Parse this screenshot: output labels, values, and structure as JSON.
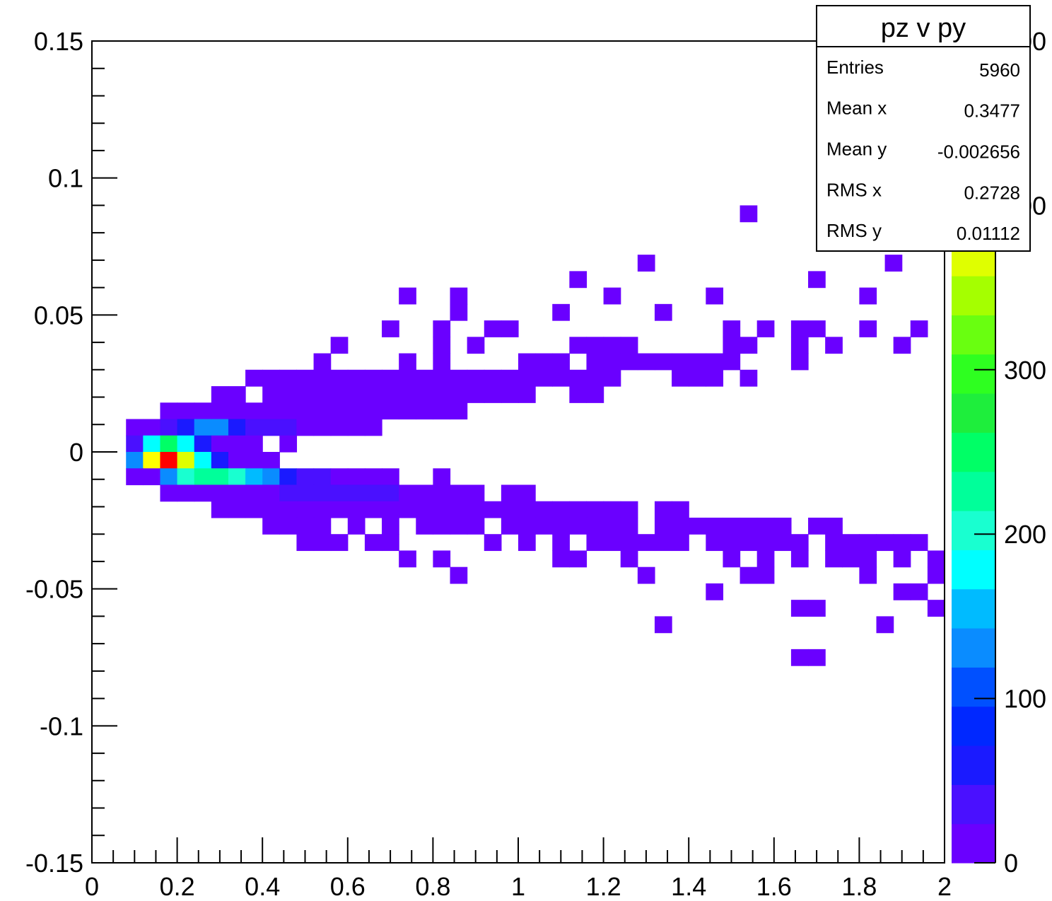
{
  "chart_data": {
    "type": "heatmap",
    "stats": {
      "title": "pz v py",
      "rows": [
        {
          "label": "Entries",
          "value": "5960"
        },
        {
          "label": "Mean x",
          "value": "0.3477"
        },
        {
          "label": "Mean y",
          "value": "-0.002656"
        },
        {
          "label": "RMS x",
          "value": "0.2728"
        },
        {
          "label": "RMS y",
          "value": "0.01112"
        }
      ]
    },
    "xlim": [
      0,
      2
    ],
    "ylim": [
      -0.15,
      0.15
    ],
    "zlim": [
      0,
      500
    ],
    "bin_width_x": 0.04,
    "bin_width_y": 0.006,
    "x_tick_labels": [
      "0",
      "0.2",
      "0.4",
      "0.6",
      "0.8",
      "1",
      "1.2",
      "1.4",
      "1.6",
      "1.8",
      "2"
    ],
    "y_tick_labels": [
      "0.15",
      "0.1",
      "0.05",
      "0",
      "-0.05",
      "-0.1",
      "-0.15"
    ],
    "z_tick_labels": [
      "0",
      "100",
      "200",
      "300",
      "400",
      "500"
    ],
    "palette": [
      "#6a00ff",
      "#4a10ff",
      "#1a1aff",
      "#0028ff",
      "#0050ff",
      "#0a8cff",
      "#00bbff",
      "#00ffff",
      "#19ffd0",
      "#00ff9a",
      "#00ff66",
      "#1eee3c",
      "#2eff20",
      "#69ff10",
      "#a5ff00",
      "#dfff00",
      "#ffff00",
      "#ffc400",
      "#ff8a00",
      "#ff4a00",
      "#ff0000"
    ],
    "bins": [
      [
        1.54,
        0.087,
        2
      ],
      [
        1.3,
        0.069,
        2
      ],
      [
        1.88,
        0.069,
        2
      ],
      [
        1.14,
        0.063,
        2
      ],
      [
        1.7,
        0.063,
        2
      ],
      [
        0.74,
        0.057,
        2
      ],
      [
        0.86,
        0.057,
        2
      ],
      [
        1.22,
        0.057,
        2
      ],
      [
        1.46,
        0.057,
        2
      ],
      [
        1.82,
        0.057,
        2
      ],
      [
        0.86,
        0.051,
        2
      ],
      [
        1.1,
        0.051,
        2
      ],
      [
        1.34,
        0.051,
        2
      ],
      [
        0.7,
        0.045,
        2
      ],
      [
        0.82,
        0.045,
        2
      ],
      [
        0.94,
        0.045,
        2
      ],
      [
        0.98,
        0.045,
        2
      ],
      [
        1.5,
        0.045,
        2
      ],
      [
        1.58,
        0.045,
        2
      ],
      [
        1.66,
        0.045,
        2
      ],
      [
        1.7,
        0.045,
        2
      ],
      [
        1.82,
        0.045,
        2
      ],
      [
        1.94,
        0.045,
        2
      ],
      [
        0.58,
        0.039,
        2
      ],
      [
        0.82,
        0.039,
        2
      ],
      [
        0.9,
        0.039,
        2
      ],
      [
        1.14,
        0.039,
        2
      ],
      [
        1.18,
        0.039,
        2
      ],
      [
        1.22,
        0.039,
        2
      ],
      [
        1.26,
        0.039,
        2
      ],
      [
        1.5,
        0.039,
        2
      ],
      [
        1.54,
        0.039,
        2
      ],
      [
        1.66,
        0.039,
        2
      ],
      [
        1.74,
        0.039,
        2
      ],
      [
        1.9,
        0.039,
        2
      ],
      [
        0.54,
        0.033,
        2
      ],
      [
        0.74,
        0.033,
        2
      ],
      [
        0.82,
        0.033,
        2
      ],
      [
        1.02,
        0.033,
        2
      ],
      [
        1.06,
        0.033,
        2
      ],
      [
        1.1,
        0.033,
        2
      ],
      [
        1.18,
        0.033,
        2
      ],
      [
        1.22,
        0.033,
        2
      ],
      [
        1.26,
        0.033,
        2
      ],
      [
        1.3,
        0.033,
        2
      ],
      [
        1.34,
        0.033,
        2
      ],
      [
        1.38,
        0.033,
        2
      ],
      [
        1.42,
        0.033,
        2
      ],
      [
        1.46,
        0.033,
        2
      ],
      [
        1.5,
        0.033,
        2
      ],
      [
        1.66,
        0.033,
        2
      ],
      [
        0.38,
        0.027,
        2
      ],
      [
        0.42,
        0.027,
        2
      ],
      [
        0.46,
        0.027,
        2
      ],
      [
        0.5,
        0.027,
        2
      ],
      [
        0.54,
        0.027,
        2
      ],
      [
        0.58,
        0.027,
        2
      ],
      [
        0.62,
        0.027,
        2
      ],
      [
        0.66,
        0.027,
        2
      ],
      [
        0.7,
        0.027,
        2
      ],
      [
        0.74,
        0.027,
        2
      ],
      [
        0.78,
        0.027,
        2
      ],
      [
        0.82,
        0.027,
        2
      ],
      [
        0.86,
        0.027,
        2
      ],
      [
        0.9,
        0.027,
        2
      ],
      [
        0.94,
        0.027,
        2
      ],
      [
        0.98,
        0.027,
        2
      ],
      [
        1.02,
        0.027,
        2
      ],
      [
        1.06,
        0.027,
        2
      ],
      [
        1.1,
        0.027,
        2
      ],
      [
        1.14,
        0.027,
        2
      ],
      [
        1.18,
        0.027,
        2
      ],
      [
        1.22,
        0.027,
        2
      ],
      [
        1.38,
        0.027,
        2
      ],
      [
        1.42,
        0.027,
        2
      ],
      [
        1.46,
        0.027,
        2
      ],
      [
        1.54,
        0.027,
        2
      ],
      [
        0.3,
        0.021,
        2
      ],
      [
        0.34,
        0.021,
        2
      ],
      [
        0.42,
        0.021,
        2
      ],
      [
        0.46,
        0.021,
        2
      ],
      [
        0.5,
        0.021,
        2
      ],
      [
        0.54,
        0.021,
        2
      ],
      [
        0.58,
        0.021,
        2
      ],
      [
        0.62,
        0.021,
        2
      ],
      [
        0.66,
        0.021,
        2
      ],
      [
        0.7,
        0.021,
        2
      ],
      [
        0.74,
        0.021,
        2
      ],
      [
        0.78,
        0.021,
        2
      ],
      [
        0.82,
        0.021,
        2
      ],
      [
        0.86,
        0.021,
        2
      ],
      [
        0.9,
        0.021,
        2
      ],
      [
        0.94,
        0.021,
        2
      ],
      [
        0.98,
        0.021,
        2
      ],
      [
        1.02,
        0.021,
        2
      ],
      [
        1.14,
        0.021,
        2
      ],
      [
        1.18,
        0.021,
        2
      ],
      [
        0.18,
        0.015,
        2
      ],
      [
        0.22,
        0.015,
        2
      ],
      [
        0.26,
        0.015,
        2
      ],
      [
        0.3,
        0.015,
        2
      ],
      [
        0.34,
        0.015,
        2
      ],
      [
        0.38,
        0.015,
        2
      ],
      [
        0.42,
        0.015,
        2
      ],
      [
        0.46,
        0.015,
        2
      ],
      [
        0.5,
        0.015,
        2
      ],
      [
        0.54,
        0.015,
        2
      ],
      [
        0.58,
        0.015,
        2
      ],
      [
        0.62,
        0.015,
        2
      ],
      [
        0.66,
        0.015,
        2
      ],
      [
        0.7,
        0.015,
        2
      ],
      [
        0.74,
        0.015,
        2
      ],
      [
        0.78,
        0.015,
        2
      ],
      [
        0.82,
        0.015,
        2
      ],
      [
        0.86,
        0.015,
        2
      ],
      [
        0.1,
        0.009,
        2
      ],
      [
        0.14,
        0.009,
        2
      ],
      [
        0.18,
        0.009,
        45
      ],
      [
        0.22,
        0.009,
        70
      ],
      [
        0.26,
        0.009,
        130
      ],
      [
        0.3,
        0.009,
        130
      ],
      [
        0.34,
        0.009,
        70
      ],
      [
        0.38,
        0.009,
        45
      ],
      [
        0.42,
        0.009,
        25
      ],
      [
        0.46,
        0.009,
        25
      ],
      [
        0.5,
        0.009,
        2
      ],
      [
        0.54,
        0.009,
        2
      ],
      [
        0.58,
        0.009,
        2
      ],
      [
        0.62,
        0.009,
        2
      ],
      [
        0.66,
        0.009,
        2
      ],
      [
        0.1,
        0.003,
        25
      ],
      [
        0.14,
        0.003,
        180
      ],
      [
        0.18,
        0.003,
        255
      ],
      [
        0.22,
        0.003,
        180
      ],
      [
        0.26,
        0.003,
        70
      ],
      [
        0.3,
        0.003,
        2
      ],
      [
        0.34,
        0.003,
        2
      ],
      [
        0.38,
        0.003,
        2
      ],
      [
        0.46,
        0.003,
        2
      ],
      [
        0.1,
        -0.003,
        130
      ],
      [
        0.14,
        -0.003,
        400
      ],
      [
        0.18,
        -0.003,
        490
      ],
      [
        0.22,
        -0.003,
        380
      ],
      [
        0.26,
        -0.003,
        180
      ],
      [
        0.3,
        -0.003,
        70
      ],
      [
        0.34,
        -0.003,
        2
      ],
      [
        0.38,
        -0.003,
        2
      ],
      [
        0.42,
        -0.003,
        2
      ],
      [
        0.1,
        -0.009,
        2
      ],
      [
        0.14,
        -0.009,
        2
      ],
      [
        0.18,
        -0.009,
        120
      ],
      [
        0.22,
        -0.009,
        210
      ],
      [
        0.26,
        -0.009,
        230
      ],
      [
        0.3,
        -0.009,
        230
      ],
      [
        0.34,
        -0.009,
        210
      ],
      [
        0.38,
        -0.009,
        160
      ],
      [
        0.42,
        -0.009,
        130
      ],
      [
        0.46,
        -0.009,
        70
      ],
      [
        0.5,
        -0.009,
        45
      ],
      [
        0.54,
        -0.009,
        25
      ],
      [
        0.58,
        -0.009,
        2
      ],
      [
        0.62,
        -0.009,
        2
      ],
      [
        0.66,
        -0.009,
        2
      ],
      [
        0.7,
        -0.009,
        2
      ],
      [
        0.82,
        -0.009,
        2
      ],
      [
        0.18,
        -0.015,
        2
      ],
      [
        0.22,
        -0.015,
        2
      ],
      [
        0.26,
        -0.015,
        2
      ],
      [
        0.3,
        -0.015,
        2
      ],
      [
        0.34,
        -0.015,
        2
      ],
      [
        0.38,
        -0.015,
        2
      ],
      [
        0.42,
        -0.015,
        2
      ],
      [
        0.46,
        -0.015,
        25
      ],
      [
        0.5,
        -0.015,
        25
      ],
      [
        0.54,
        -0.015,
        25
      ],
      [
        0.58,
        -0.015,
        25
      ],
      [
        0.62,
        -0.015,
        25
      ],
      [
        0.66,
        -0.015,
        25
      ],
      [
        0.7,
        -0.015,
        25
      ],
      [
        0.74,
        -0.015,
        2
      ],
      [
        0.78,
        -0.015,
        2
      ],
      [
        0.82,
        -0.015,
        2
      ],
      [
        0.86,
        -0.015,
        2
      ],
      [
        0.9,
        -0.015,
        2
      ],
      [
        0.98,
        -0.015,
        2
      ],
      [
        1.02,
        -0.015,
        2
      ],
      [
        0.3,
        -0.021,
        2
      ],
      [
        0.34,
        -0.021,
        2
      ],
      [
        0.38,
        -0.021,
        2
      ],
      [
        0.42,
        -0.021,
        2
      ],
      [
        0.46,
        -0.021,
        2
      ],
      [
        0.5,
        -0.021,
        2
      ],
      [
        0.54,
        -0.021,
        2
      ],
      [
        0.58,
        -0.021,
        2
      ],
      [
        0.62,
        -0.021,
        2
      ],
      [
        0.66,
        -0.021,
        2
      ],
      [
        0.7,
        -0.021,
        2
      ],
      [
        0.74,
        -0.021,
        2
      ],
      [
        0.78,
        -0.021,
        2
      ],
      [
        0.82,
        -0.021,
        2
      ],
      [
        0.86,
        -0.021,
        2
      ],
      [
        0.9,
        -0.021,
        2
      ],
      [
        0.94,
        -0.021,
        2
      ],
      [
        0.98,
        -0.021,
        2
      ],
      [
        1.02,
        -0.021,
        2
      ],
      [
        1.06,
        -0.021,
        2
      ],
      [
        1.1,
        -0.021,
        2
      ],
      [
        1.14,
        -0.021,
        2
      ],
      [
        1.18,
        -0.021,
        2
      ],
      [
        1.22,
        -0.021,
        2
      ],
      [
        1.26,
        -0.021,
        2
      ],
      [
        1.34,
        -0.021,
        2
      ],
      [
        1.38,
        -0.021,
        2
      ],
      [
        0.42,
        -0.027,
        2
      ],
      [
        0.46,
        -0.027,
        2
      ],
      [
        0.5,
        -0.027,
        2
      ],
      [
        0.54,
        -0.027,
        2
      ],
      [
        0.62,
        -0.027,
        2
      ],
      [
        0.7,
        -0.027,
        2
      ],
      [
        0.78,
        -0.027,
        2
      ],
      [
        0.82,
        -0.027,
        2
      ],
      [
        0.86,
        -0.027,
        2
      ],
      [
        0.9,
        -0.027,
        2
      ],
      [
        0.98,
        -0.027,
        2
      ],
      [
        1.02,
        -0.027,
        2
      ],
      [
        1.06,
        -0.027,
        2
      ],
      [
        1.1,
        -0.027,
        2
      ],
      [
        1.14,
        -0.027,
        2
      ],
      [
        1.18,
        -0.027,
        2
      ],
      [
        1.22,
        -0.027,
        2
      ],
      [
        1.26,
        -0.027,
        2
      ],
      [
        1.34,
        -0.027,
        2
      ],
      [
        1.38,
        -0.027,
        2
      ],
      [
        1.42,
        -0.027,
        2
      ],
      [
        1.46,
        -0.027,
        2
      ],
      [
        1.5,
        -0.027,
        2
      ],
      [
        1.54,
        -0.027,
        2
      ],
      [
        1.58,
        -0.027,
        2
      ],
      [
        1.62,
        -0.027,
        2
      ],
      [
        1.7,
        -0.027,
        2
      ],
      [
        1.74,
        -0.027,
        2
      ],
      [
        0.5,
        -0.033,
        2
      ],
      [
        0.54,
        -0.033,
        2
      ],
      [
        0.58,
        -0.033,
        2
      ],
      [
        0.66,
        -0.033,
        2
      ],
      [
        0.7,
        -0.033,
        2
      ],
      [
        0.94,
        -0.033,
        2
      ],
      [
        1.02,
        -0.033,
        2
      ],
      [
        1.1,
        -0.033,
        2
      ],
      [
        1.18,
        -0.033,
        2
      ],
      [
        1.22,
        -0.033,
        2
      ],
      [
        1.26,
        -0.033,
        2
      ],
      [
        1.3,
        -0.033,
        2
      ],
      [
        1.34,
        -0.033,
        2
      ],
      [
        1.38,
        -0.033,
        2
      ],
      [
        1.46,
        -0.033,
        2
      ],
      [
        1.5,
        -0.033,
        2
      ],
      [
        1.54,
        -0.033,
        2
      ],
      [
        1.58,
        -0.033,
        2
      ],
      [
        1.62,
        -0.033,
        2
      ],
      [
        1.66,
        -0.033,
        2
      ],
      [
        1.74,
        -0.033,
        2
      ],
      [
        1.78,
        -0.033,
        2
      ],
      [
        1.82,
        -0.033,
        2
      ],
      [
        1.86,
        -0.033,
        2
      ],
      [
        1.9,
        -0.033,
        2
      ],
      [
        1.94,
        -0.033,
        2
      ],
      [
        0.74,
        -0.039,
        2
      ],
      [
        0.82,
        -0.039,
        2
      ],
      [
        1.1,
        -0.039,
        2
      ],
      [
        1.14,
        -0.039,
        2
      ],
      [
        1.26,
        -0.039,
        2
      ],
      [
        1.5,
        -0.039,
        2
      ],
      [
        1.58,
        -0.039,
        2
      ],
      [
        1.66,
        -0.039,
        2
      ],
      [
        1.74,
        -0.039,
        2
      ],
      [
        1.78,
        -0.039,
        2
      ],
      [
        1.82,
        -0.039,
        2
      ],
      [
        1.9,
        -0.039,
        2
      ],
      [
        1.98,
        -0.039,
        2
      ],
      [
        0.86,
        -0.045,
        2
      ],
      [
        1.3,
        -0.045,
        2
      ],
      [
        1.54,
        -0.045,
        2
      ],
      [
        1.58,
        -0.045,
        2
      ],
      [
        1.82,
        -0.045,
        2
      ],
      [
        1.98,
        -0.045,
        2
      ],
      [
        1.46,
        -0.051,
        2
      ],
      [
        1.9,
        -0.051,
        2
      ],
      [
        1.94,
        -0.051,
        2
      ],
      [
        1.66,
        -0.057,
        2
      ],
      [
        1.7,
        -0.057,
        2
      ],
      [
        1.98,
        -0.057,
        2
      ],
      [
        1.34,
        -0.063,
        2
      ],
      [
        1.86,
        -0.063,
        2
      ],
      [
        1.66,
        -0.075,
        2
      ],
      [
        1.7,
        -0.075,
        2
      ]
    ]
  }
}
